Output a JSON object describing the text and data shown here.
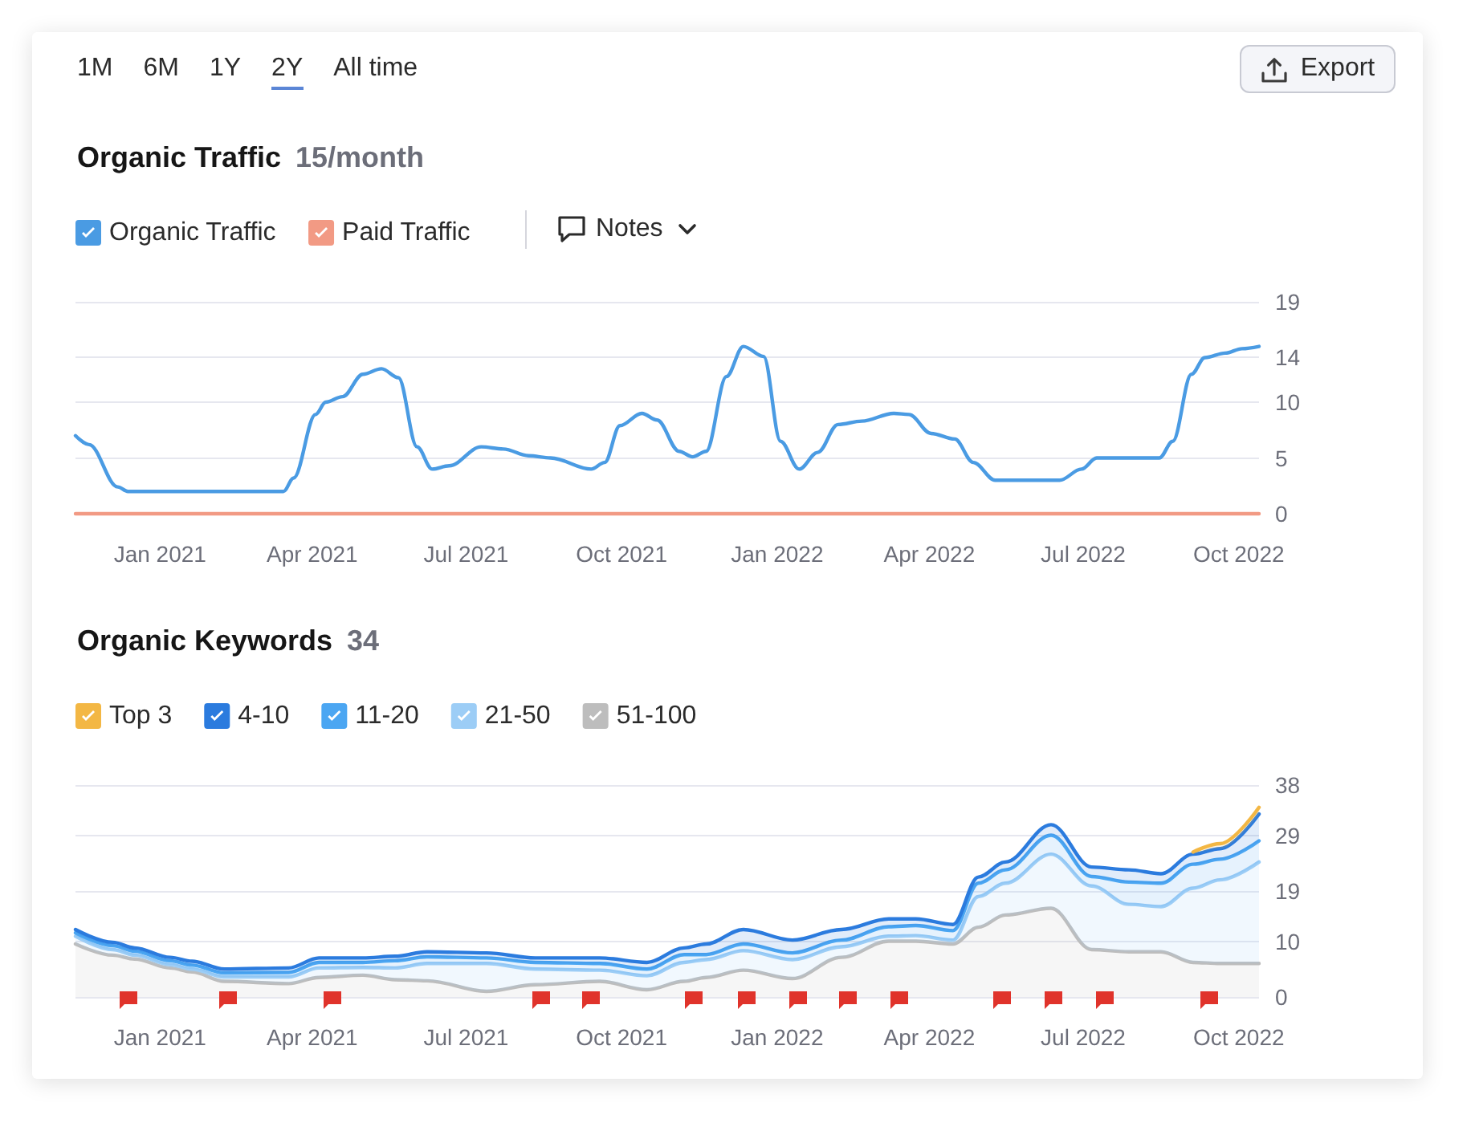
{
  "chart_data": [
    {
      "type": "line",
      "title": "Organic Traffic",
      "subtitle": "15/month",
      "annotations": [
        "1M",
        "6M",
        "1Y",
        "2Y",
        "All time",
        "Export",
        "Notes"
      ],
      "xlim": [
        "2020-11-12",
        "2022-10-13"
      ],
      "xticks": [
        {
          "value": "2021-01-01",
          "label": "Jan 2021"
        },
        {
          "value": "2021-04-01",
          "label": "Apr 2021"
        },
        {
          "value": "2021-07-01",
          "label": "Jul 2021"
        },
        {
          "value": "2021-10-01",
          "label": "Oct 2021"
        },
        {
          "value": "2022-01-01",
          "label": "Jan 2022"
        },
        {
          "value": "2022-04-01",
          "label": "Apr 2022"
        },
        {
          "value": "2022-07-01",
          "label": "Jul 2022"
        },
        {
          "value": "2022-10-01",
          "label": "Oct 2022"
        }
      ],
      "ylim": [
        0,
        19
      ],
      "yticks": [
        0,
        5,
        10,
        14,
        19
      ],
      "grid": "y",
      "legend": "top left",
      "series": [
        {
          "name": "Organic Traffic",
          "color": "#4a9be3",
          "x": [
            "2020-11-12",
            "2020-11-20",
            "2020-12-07",
            "2020-12-13",
            "2021-03-15",
            "2021-03-21",
            "2021-04-03",
            "2021-04-09",
            "2021-04-19",
            "2021-05-01",
            "2021-05-12",
            "2021-05-22",
            "2021-06-02",
            "2021-06-11",
            "2021-06-21",
            "2021-07-10",
            "2021-07-23",
            "2021-08-07",
            "2021-08-20",
            "2021-09-13",
            "2021-09-21",
            "2021-09-30",
            "2021-10-13",
            "2021-10-22",
            "2021-11-04",
            "2021-11-12",
            "2021-11-20",
            "2021-12-02",
            "2021-12-12",
            "2021-12-24",
            "2022-01-03",
            "2022-01-14",
            "2022-01-25",
            "2022-02-06",
            "2022-02-20",
            "2022-03-11",
            "2022-03-20",
            "2022-04-02",
            "2022-04-16",
            "2022-04-27",
            "2022-05-10",
            "2022-06-17",
            "2022-06-30",
            "2022-07-09",
            "2022-08-15",
            "2022-08-23",
            "2022-09-03",
            "2022-09-11",
            "2022-09-23",
            "2022-10-03",
            "2022-10-13"
          ],
          "values": [
            7,
            6.2,
            2.4,
            2,
            2,
            3.2,
            8.9,
            10,
            10.5,
            12.5,
            13,
            12.2,
            6,
            4,
            4.3,
            6,
            5.8,
            5.2,
            5,
            4,
            4.6,
            7.9,
            9,
            8.4,
            5.6,
            5.1,
            5.6,
            12.3,
            15,
            14.1,
            6.5,
            4,
            5.5,
            8,
            8.3,
            9,
            8.9,
            7.2,
            6.7,
            4.6,
            3,
            3,
            4,
            5,
            5,
            6.5,
            12.5,
            14,
            14.4,
            14.8,
            15
          ]
        },
        {
          "name": "Paid Traffic",
          "color": "#f29a84",
          "x": [
            "2020-11-12",
            "2022-10-13"
          ],
          "values": [
            0,
            0
          ]
        }
      ]
    },
    {
      "type": "area",
      "stacked": true,
      "title": "Organic Keywords",
      "subtitle": "34",
      "x": [
        "2020-11-12",
        "2020-12-04",
        "2020-12-17",
        "2021-01-07",
        "2021-01-20",
        "2021-02-08",
        "2021-03-18",
        "2021-04-05",
        "2021-05-01",
        "2021-05-20",
        "2021-06-08",
        "2021-07-13",
        "2021-08-11",
        "2021-09-18",
        "2021-10-16",
        "2021-11-07",
        "2021-11-20",
        "2021-12-12",
        "2022-01-10",
        "2022-02-08",
        "2022-03-08",
        "2022-03-24",
        "2022-04-15",
        "2022-04-30",
        "2022-05-16",
        "2022-06-12",
        "2022-07-06",
        "2022-07-28",
        "2022-08-16",
        "2022-09-04",
        "2022-09-20",
        "2022-10-13"
      ],
      "xlim": [
        "2020-11-12",
        "2022-10-13"
      ],
      "xticks": [
        {
          "value": "2021-01-01",
          "label": "Jan 2021"
        },
        {
          "value": "2021-04-01",
          "label": "Apr 2021"
        },
        {
          "value": "2021-07-01",
          "label": "Jul 2021"
        },
        {
          "value": "2021-10-01",
          "label": "Oct 2021"
        },
        {
          "value": "2022-01-01",
          "label": "Jan 2022"
        },
        {
          "value": "2022-04-01",
          "label": "Apr 2022"
        },
        {
          "value": "2022-07-01",
          "label": "Jul 2022"
        },
        {
          "value": "2022-10-01",
          "label": "Oct 2022"
        }
      ],
      "ylim": [
        0,
        38
      ],
      "yticks": [
        0,
        10,
        19,
        29,
        38
      ],
      "grid": "y",
      "legend": "top left",
      "series": [
        {
          "name": "51-100",
          "color": "#bdbdbd",
          "values": [
            9.5,
            7.5,
            6.8,
            5.2,
            4.5,
            2.8,
            2.4,
            3.5,
            3.9,
            3.1,
            2.9,
            1.0,
            2.2,
            2.8,
            1.3,
            2.8,
            3.5,
            4.8,
            3.3,
            7.1,
            10.0,
            10.0,
            9.5,
            12.5,
            14.7,
            15.9,
            8.5,
            8.1,
            8.1,
            6.2,
            6.0,
            6.0
          ]
        },
        {
          "name": "21-50",
          "color": "#9ccdf6",
          "values": [
            1.4,
            1.0,
            0.7,
            0.6,
            0.5,
            0.8,
            1.2,
            1.7,
            1.4,
            2.1,
            3.1,
            5.0,
            2.8,
            2.0,
            2.5,
            3.4,
            3.2,
            3.5,
            3.4,
            1.9,
            0.9,
            1.0,
            0.7,
            5.5,
            5.7,
            9.7,
            11.4,
            8.5,
            8.1,
            13.3,
            15.0,
            18.2
          ]
        },
        {
          "name": "11-20",
          "color": "#4ba6f2",
          "values": [
            0.6,
            0.7,
            0.7,
            0.7,
            0.7,
            0.7,
            0.8,
            1.0,
            0.9,
            1.3,
            1.2,
            1.0,
            1.2,
            1.2,
            1.2,
            1.4,
            0.9,
            1.2,
            1.2,
            1.2,
            1.7,
            1.8,
            1.7,
            2.4,
            2.4,
            3.4,
            1.7,
            4.0,
            4.2,
            4.3,
            3.7,
            3.8
          ]
        },
        {
          "name": "4-10",
          "color": "#2b7bde",
          "values": [
            0.6,
            0.6,
            0.6,
            0.6,
            0.7,
            0.7,
            0.8,
            0.8,
            0.8,
            0.8,
            0.9,
            0.9,
            0.8,
            1.0,
            1.2,
            1.2,
            1.9,
            2.6,
            2.3,
            1.9,
            1.4,
            1.2,
            1.1,
            1.1,
            1.4,
            1.9,
            1.7,
            2.2,
            1.7,
            1.8,
            1.9,
            4.8
          ]
        },
        {
          "name": "Top 3",
          "color": "#f3b744",
          "values": [
            null,
            null,
            null,
            null,
            null,
            null,
            null,
            null,
            null,
            null,
            null,
            null,
            null,
            null,
            null,
            null,
            null,
            null,
            null,
            null,
            null,
            null,
            null,
            null,
            null,
            null,
            null,
            null,
            null,
            0.4,
            0.9,
            1.2
          ]
        }
      ]
    }
  ]
}
